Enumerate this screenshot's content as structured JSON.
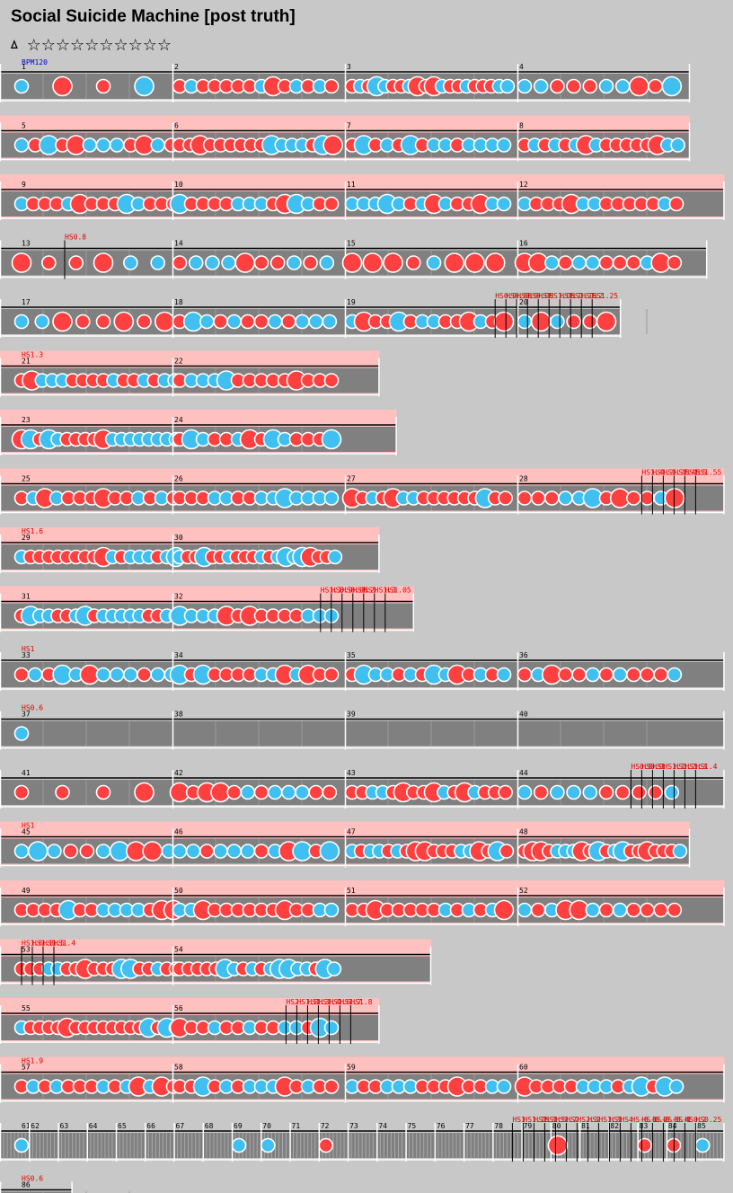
{
  "song": {
    "title": "Social Suicide Machine [post truth]",
    "level_symbol": "ㅿ",
    "stars": "☆☆☆☆☆☆☆☆☆☆"
  },
  "colors": {
    "background": "#c8c8c8",
    "lane": "#808080",
    "gogo": "#ffc0c0",
    "don": "#ff4040",
    "ka": "#40c0f0",
    "hs_text": "#e00000"
  },
  "bpm_label": "BPM120",
  "rows": [
    {
      "measures": [
        1,
        2,
        3,
        4
      ],
      "span": 4,
      "hs": [],
      "gogo": false,
      "dens": [
        4,
        14,
        20,
        10
      ]
    },
    {
      "measures": [
        5,
        6,
        7,
        8
      ],
      "span": 4,
      "hs": [],
      "gogo": true,
      "dens": [
        12,
        16,
        14,
        16
      ]
    },
    {
      "measures": [
        9,
        10,
        11,
        12
      ],
      "span": 4.2,
      "hs": [],
      "gogo": true,
      "dens": [
        14,
        14,
        14,
        14
      ]
    },
    {
      "measures": [
        13,
        14,
        15,
        16
      ],
      "span": 4.1,
      "hs": [
        "HS0.8"
      ],
      "gogo": false,
      "dens": [
        6,
        10,
        8,
        12
      ]
    },
    {
      "measures": [
        17,
        18,
        19,
        20
      ],
      "span": 3.6,
      "hs": [
        "HS0.9",
        "HS0.85",
        "HS0.9",
        "HS0.95",
        "HS1",
        "HS1.05",
        "HS1.1",
        "HS1.15",
        "HS1.2",
        "HS1.25"
      ],
      "gogo": false,
      "dens": [
        8,
        12,
        14,
        10
      ]
    },
    {
      "measures": [
        21,
        22
      ],
      "span": 2.2,
      "hs": [
        "HS1.3"
      ],
      "gogo": true,
      "dens": [
        16,
        14
      ]
    },
    {
      "measures": [
        23,
        24
      ],
      "span": 2.3,
      "hs": [],
      "gogo": true,
      "dens": [
        18,
        14
      ]
    },
    {
      "measures": [
        25,
        26,
        27,
        28
      ],
      "span": 4.2,
      "hs": [
        "HS1.4",
        "HS1.3",
        "HS1.35",
        "HS1.45",
        "HS1.5",
        "HS1.55"
      ],
      "gogo": true,
      "dens": [
        14,
        14,
        16,
        12
      ]
    },
    {
      "measures": [
        29,
        30
      ],
      "span": 2.2,
      "hs": [
        "HS1.6"
      ],
      "gogo": true,
      "dens": [
        18,
        20
      ]
    },
    {
      "measures": [
        31,
        32
      ],
      "span": 2.4,
      "hs": [
        "HS1.1",
        "HS0.9",
        "HS0.95",
        "HS1.2",
        "HS1",
        "HS1.3",
        "HS1.05"
      ],
      "gogo": true,
      "dens": [
        18,
        14
      ]
    },
    {
      "measures": [
        33,
        34,
        35,
        36
      ],
      "span": 4.2,
      "hs": [
        "HS1"
      ],
      "gogo": false,
      "dens": [
        12,
        14,
        14,
        12
      ]
    },
    {
      "measures": [
        37,
        38,
        39,
        40
      ],
      "span": 4.2,
      "hs": [
        "HS0.6"
      ],
      "gogo": false,
      "dens": [
        1,
        0,
        0,
        0
      ]
    },
    {
      "measures": [
        41,
        42,
        43,
        44
      ],
      "span": 4.2,
      "hs": [
        "HS0.8",
        "HS0.9",
        "HS1",
        "HS1.1",
        "HS1.2",
        "HS1.3",
        "HS1.4"
      ],
      "gogo": false,
      "dens": [
        4,
        12,
        16,
        10
      ]
    },
    {
      "measures": [
        45,
        46,
        47,
        48
      ],
      "span": 4,
      "hs": [
        "HS1"
      ],
      "gogo": true,
      "dens": [
        10,
        12,
        18,
        20
      ]
    },
    {
      "measures": [
        49,
        50,
        51,
        52
      ],
      "span": 4.2,
      "hs": [],
      "gogo": true,
      "dens": [
        14,
        14,
        14,
        12
      ]
    },
    {
      "measures": [
        53,
        54
      ],
      "span": 2.5,
      "hs": [
        "HS1.6",
        "HS1.8",
        "HS1.5",
        "HS1.4"
      ],
      "gogo": true,
      "dens": [
        18,
        18
      ]
    },
    {
      "measures": [
        55,
        56
      ],
      "span": 2.2,
      "hs": [
        "HS2",
        "HS1.8",
        "HS1.3",
        "HS1.4",
        "HS1.6",
        "HS1.7",
        "HS1.8"
      ],
      "gogo": true,
      "dens": [
        18,
        14
      ]
    },
    {
      "measures": [
        57,
        58,
        59,
        60
      ],
      "span": 4.2,
      "hs": [
        "HS1.9"
      ],
      "gogo": true,
      "dens": [
        14,
        14,
        14,
        14
      ]
    },
    {
      "measures": [
        61,
        62,
        63,
        64,
        65,
        66,
        67,
        68,
        69,
        70,
        71,
        72,
        73,
        74,
        75,
        76,
        77,
        78,
        79,
        80,
        81,
        82,
        83,
        84,
        85
      ],
      "span": 4.2,
      "hs": [
        "HS1",
        "HS1.15",
        "HS1.3",
        "HS1.5",
        "HS1.7",
        "HS2",
        "HS2.3",
        "HS2",
        "HS1.3",
        "HS1",
        "HS4",
        "HS-0.1",
        "HS-0.2",
        "HS-0.3",
        "HS-0.4",
        "HS-1",
        "HS0.2",
        "HS0.25"
      ],
      "gogo": false,
      "compressed": true,
      "dens": [
        1,
        0,
        0,
        0,
        0,
        0,
        0,
        0,
        1,
        1,
        0,
        1,
        0,
        0,
        0,
        0,
        0,
        0,
        0,
        1,
        0,
        0,
        1,
        1,
        1
      ]
    },
    {
      "measures": [
        86
      ],
      "span": 0.42,
      "hs": [
        "HS0.6"
      ],
      "gogo": false,
      "dens": [
        1
      ]
    }
  ]
}
